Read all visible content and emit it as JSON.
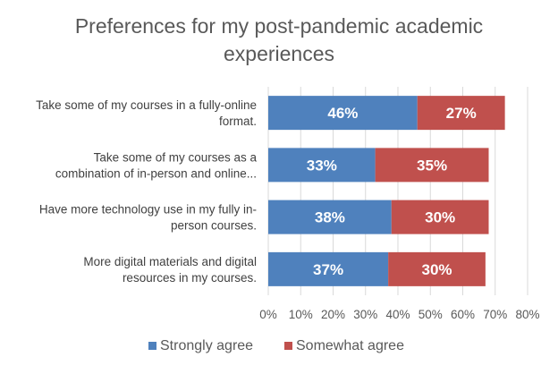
{
  "chart_data": {
    "type": "bar",
    "orientation": "horizontal",
    "stacked": true,
    "title": "Preferences for my post-pandemic academic experiences",
    "title_lines": [
      "Preferences for my post-pandemic academic",
      "experiences"
    ],
    "categories": [
      "Take some of my courses in a fully-online format.",
      "Take some of my courses as a combination of in-person and online...",
      "Have more technology use in my fully in-person courses.",
      "More digital materials and digital resources in my courses."
    ],
    "category_lines": [
      [
        "Take some of my courses in a fully-online",
        "format."
      ],
      [
        "Take some of my courses as a",
        "combination of in-person and online..."
      ],
      [
        "Have more technology use in my fully in-",
        "person courses."
      ],
      [
        "More digital materials and digital",
        "resources in my courses."
      ]
    ],
    "series": [
      {
        "name": "Strongly agree",
        "color": "#4f81bd",
        "values": [
          46,
          33,
          38,
          37
        ],
        "labels": [
          "46%",
          "33%",
          "38%",
          "37%"
        ]
      },
      {
        "name": "Somewhat agree",
        "color": "#c0504d",
        "values": [
          27,
          35,
          30,
          30
        ],
        "labels": [
          "27%",
          "35%",
          "30%",
          "30%"
        ]
      }
    ],
    "xlim": [
      0,
      80
    ],
    "xticks": [
      "0%",
      "10%",
      "20%",
      "30%",
      "40%",
      "50%",
      "60%",
      "70%",
      "80%"
    ],
    "xtick_values": [
      0,
      10,
      20,
      30,
      40,
      50,
      60,
      70,
      80
    ],
    "grid": true,
    "legend_position": "bottom"
  }
}
